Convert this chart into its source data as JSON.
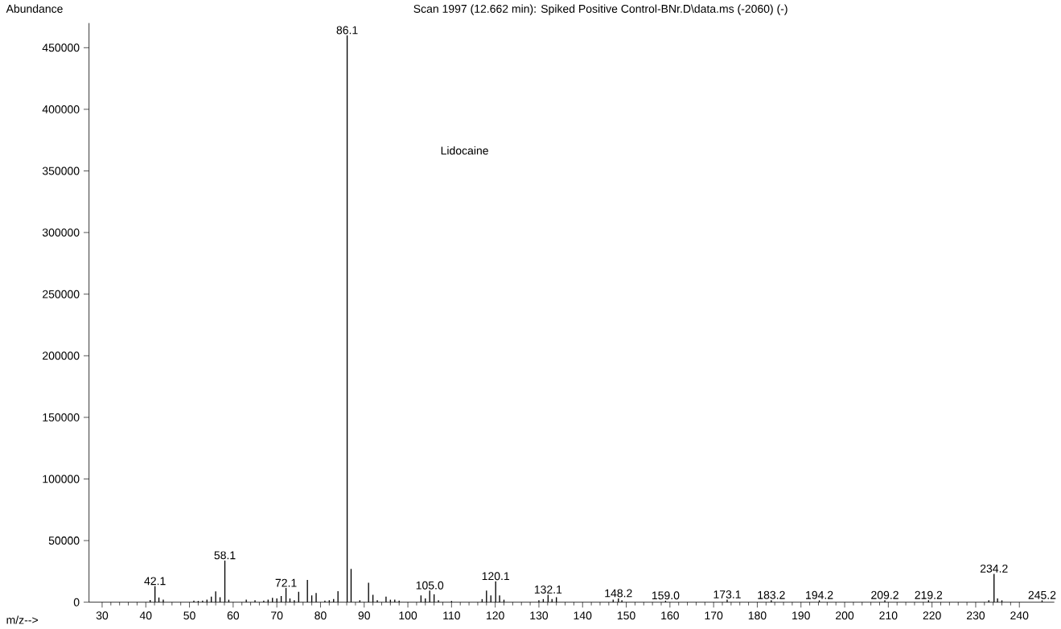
{
  "chart_data": {
    "type": "bar",
    "title": "Scan 1997 (12.662 min): Spiked Positive Control-BNr.D\\data.ms (-2060) (-)",
    "xlabel": "m/z-->",
    "ylabel": "Abundance",
    "color": "#000000",
    "x": [
      41,
      42.1,
      43,
      44,
      51,
      52,
      53,
      54,
      55,
      56,
      57,
      58.1,
      59,
      63,
      65,
      67,
      68,
      69,
      70,
      71,
      72.1,
      73,
      74,
      75,
      77,
      78,
      79,
      81,
      82,
      83,
      84,
      86.1,
      87,
      89,
      91,
      92,
      93,
      95,
      96,
      97,
      98,
      103,
      104,
      105.0,
      106,
      107,
      110,
      117,
      118,
      119,
      120.1,
      121,
      122,
      130,
      131,
      132.1,
      133,
      134,
      147,
      148.2,
      149,
      159.0,
      173.1,
      183.2,
      194.2,
      209.2,
      219.2,
      233,
      234.2,
      235,
      236,
      245.2
    ],
    "values": [
      1700,
      13000,
      3800,
      2000,
      1300,
      1000,
      1300,
      2000,
      4500,
      8800,
      4000,
      33800,
      2000,
      2000,
      1500,
      1200,
      2000,
      3500,
      3000,
      5000,
      11500,
      3000,
      1500,
      8500,
      18000,
      5500,
      7500,
      1200,
      1500,
      2500,
      9000,
      460000,
      27000,
      1500,
      15800,
      6000,
      1500,
      4500,
      2000,
      2000,
      1200,
      5500,
      3000,
      9400,
      6400,
      1500,
      1000,
      2500,
      9400,
      5500,
      16900,
      5500,
      2000,
      1500,
      2500,
      6000,
      2500,
      4000,
      2000,
      3000,
      1500,
      1200,
      2000,
      1500,
      1500,
      1500,
      1500,
      1500,
      23000,
      3000,
      1500,
      1500
    ],
    "xlim": [
      27,
      248
    ],
    "ylim": [
      0,
      470000
    ],
    "xticks": [
      30,
      40,
      50,
      60,
      70,
      80,
      90,
      100,
      110,
      120,
      130,
      140,
      150,
      160,
      170,
      180,
      190,
      200,
      210,
      220,
      230,
      240
    ],
    "yticks": [
      0,
      50000,
      100000,
      150000,
      200000,
      250000,
      300000,
      350000,
      400000,
      450000
    ],
    "annotations": [
      {
        "text": "42.1",
        "x": 42.1,
        "y": 13000
      },
      {
        "text": "58.1",
        "x": 58.1,
        "y": 33800
      },
      {
        "text": "72.1",
        "x": 72.1,
        "y": 11500
      },
      {
        "text": "86.1",
        "x": 86.1,
        "y": 460000
      },
      {
        "text": "105.0",
        "x": 105.0,
        "y": 9400
      },
      {
        "text": "120.1",
        "x": 120.1,
        "y": 16900
      },
      {
        "text": "132.1",
        "x": 132.1,
        "y": 6000
      },
      {
        "text": "148.2",
        "x": 148.2,
        "y": 3000
      },
      {
        "text": "159.0",
        "x": 159.0,
        "y": 1200
      },
      {
        "text": "173.1",
        "x": 173.1,
        "y": 2000
      },
      {
        "text": "183.2",
        "x": 183.2,
        "y": 1500
      },
      {
        "text": "194.2",
        "x": 194.2,
        "y": 1500
      },
      {
        "text": "209.2",
        "x": 209.2,
        "y": 1500
      },
      {
        "text": "219.2",
        "x": 219.2,
        "y": 1500
      },
      {
        "text": "234.2",
        "x": 234.2,
        "y": 23000
      },
      {
        "text": "245.2",
        "x": 245.2,
        "y": 1500
      },
      "Lidocaine"
    ]
  }
}
